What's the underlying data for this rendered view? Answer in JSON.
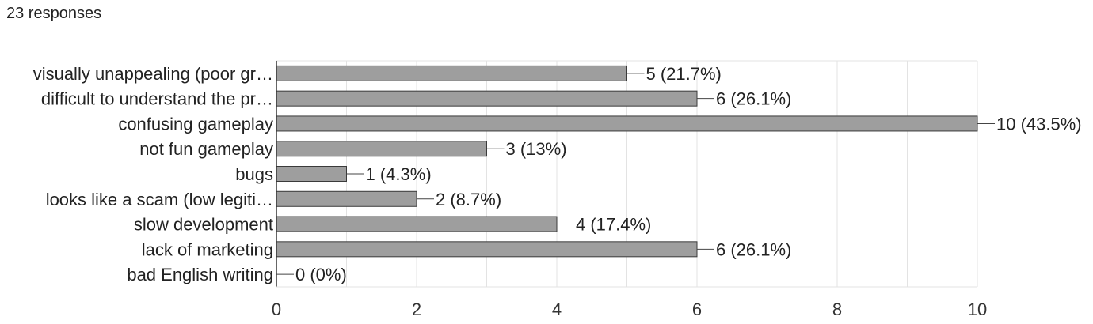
{
  "header": {
    "responses": "23 responses"
  },
  "chart_data": {
    "type": "bar",
    "orientation": "horizontal",
    "categories": [
      "visually unappealing (poor gr…",
      "difficult to understand the pr…",
      "confusing gameplay",
      "not fun gameplay",
      "bugs",
      "looks like a scam (low legiti…",
      "slow development",
      "lack of marketing",
      "bad English writing"
    ],
    "values": [
      5,
      6,
      10,
      3,
      1,
      2,
      4,
      6,
      0
    ],
    "data_labels": [
      "5 (21.7%)",
      "6 (26.1%)",
      "10 (43.5%)",
      "3 (13%)",
      "1 (4.3%)",
      "2 (8.7%)",
      "4 (17.4%)",
      "6 (26.1%)",
      "0 (0%)"
    ],
    "xlim": [
      0,
      10
    ],
    "xticks": [
      0,
      2,
      4,
      6,
      8,
      10
    ],
    "grid": true,
    "bar_color": "#9e9e9e",
    "bar_border_color": "#3a3a3a",
    "grid_color": "#e3e3e3",
    "axis_color": "#333333"
  }
}
